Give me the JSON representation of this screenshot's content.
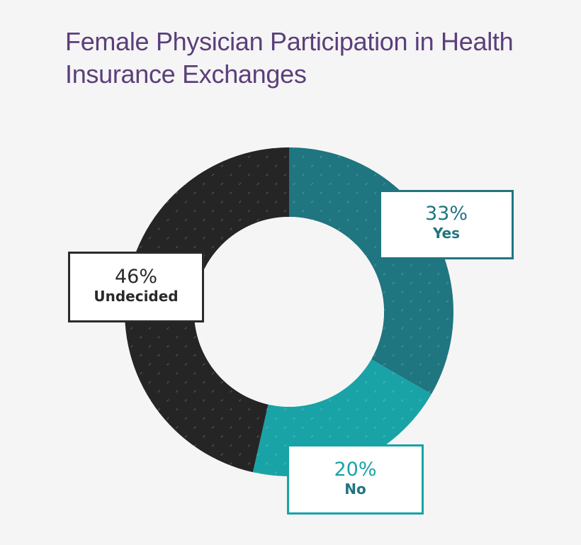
{
  "chart_data": {
    "type": "donut",
    "title": "Female Physician Participation in Health Insurance Exchanges",
    "slices": [
      {
        "name": "Yes",
        "percent_label": "33%",
        "value": 33,
        "color": "#1f7580"
      },
      {
        "name": "No",
        "percent_label": "20%",
        "value": 20,
        "color": "#19a3a6"
      },
      {
        "name": "Undecided",
        "percent_label": "46%",
        "value": 46,
        "color": "#252525"
      }
    ],
    "pattern": "diagonal dashed lines"
  }
}
